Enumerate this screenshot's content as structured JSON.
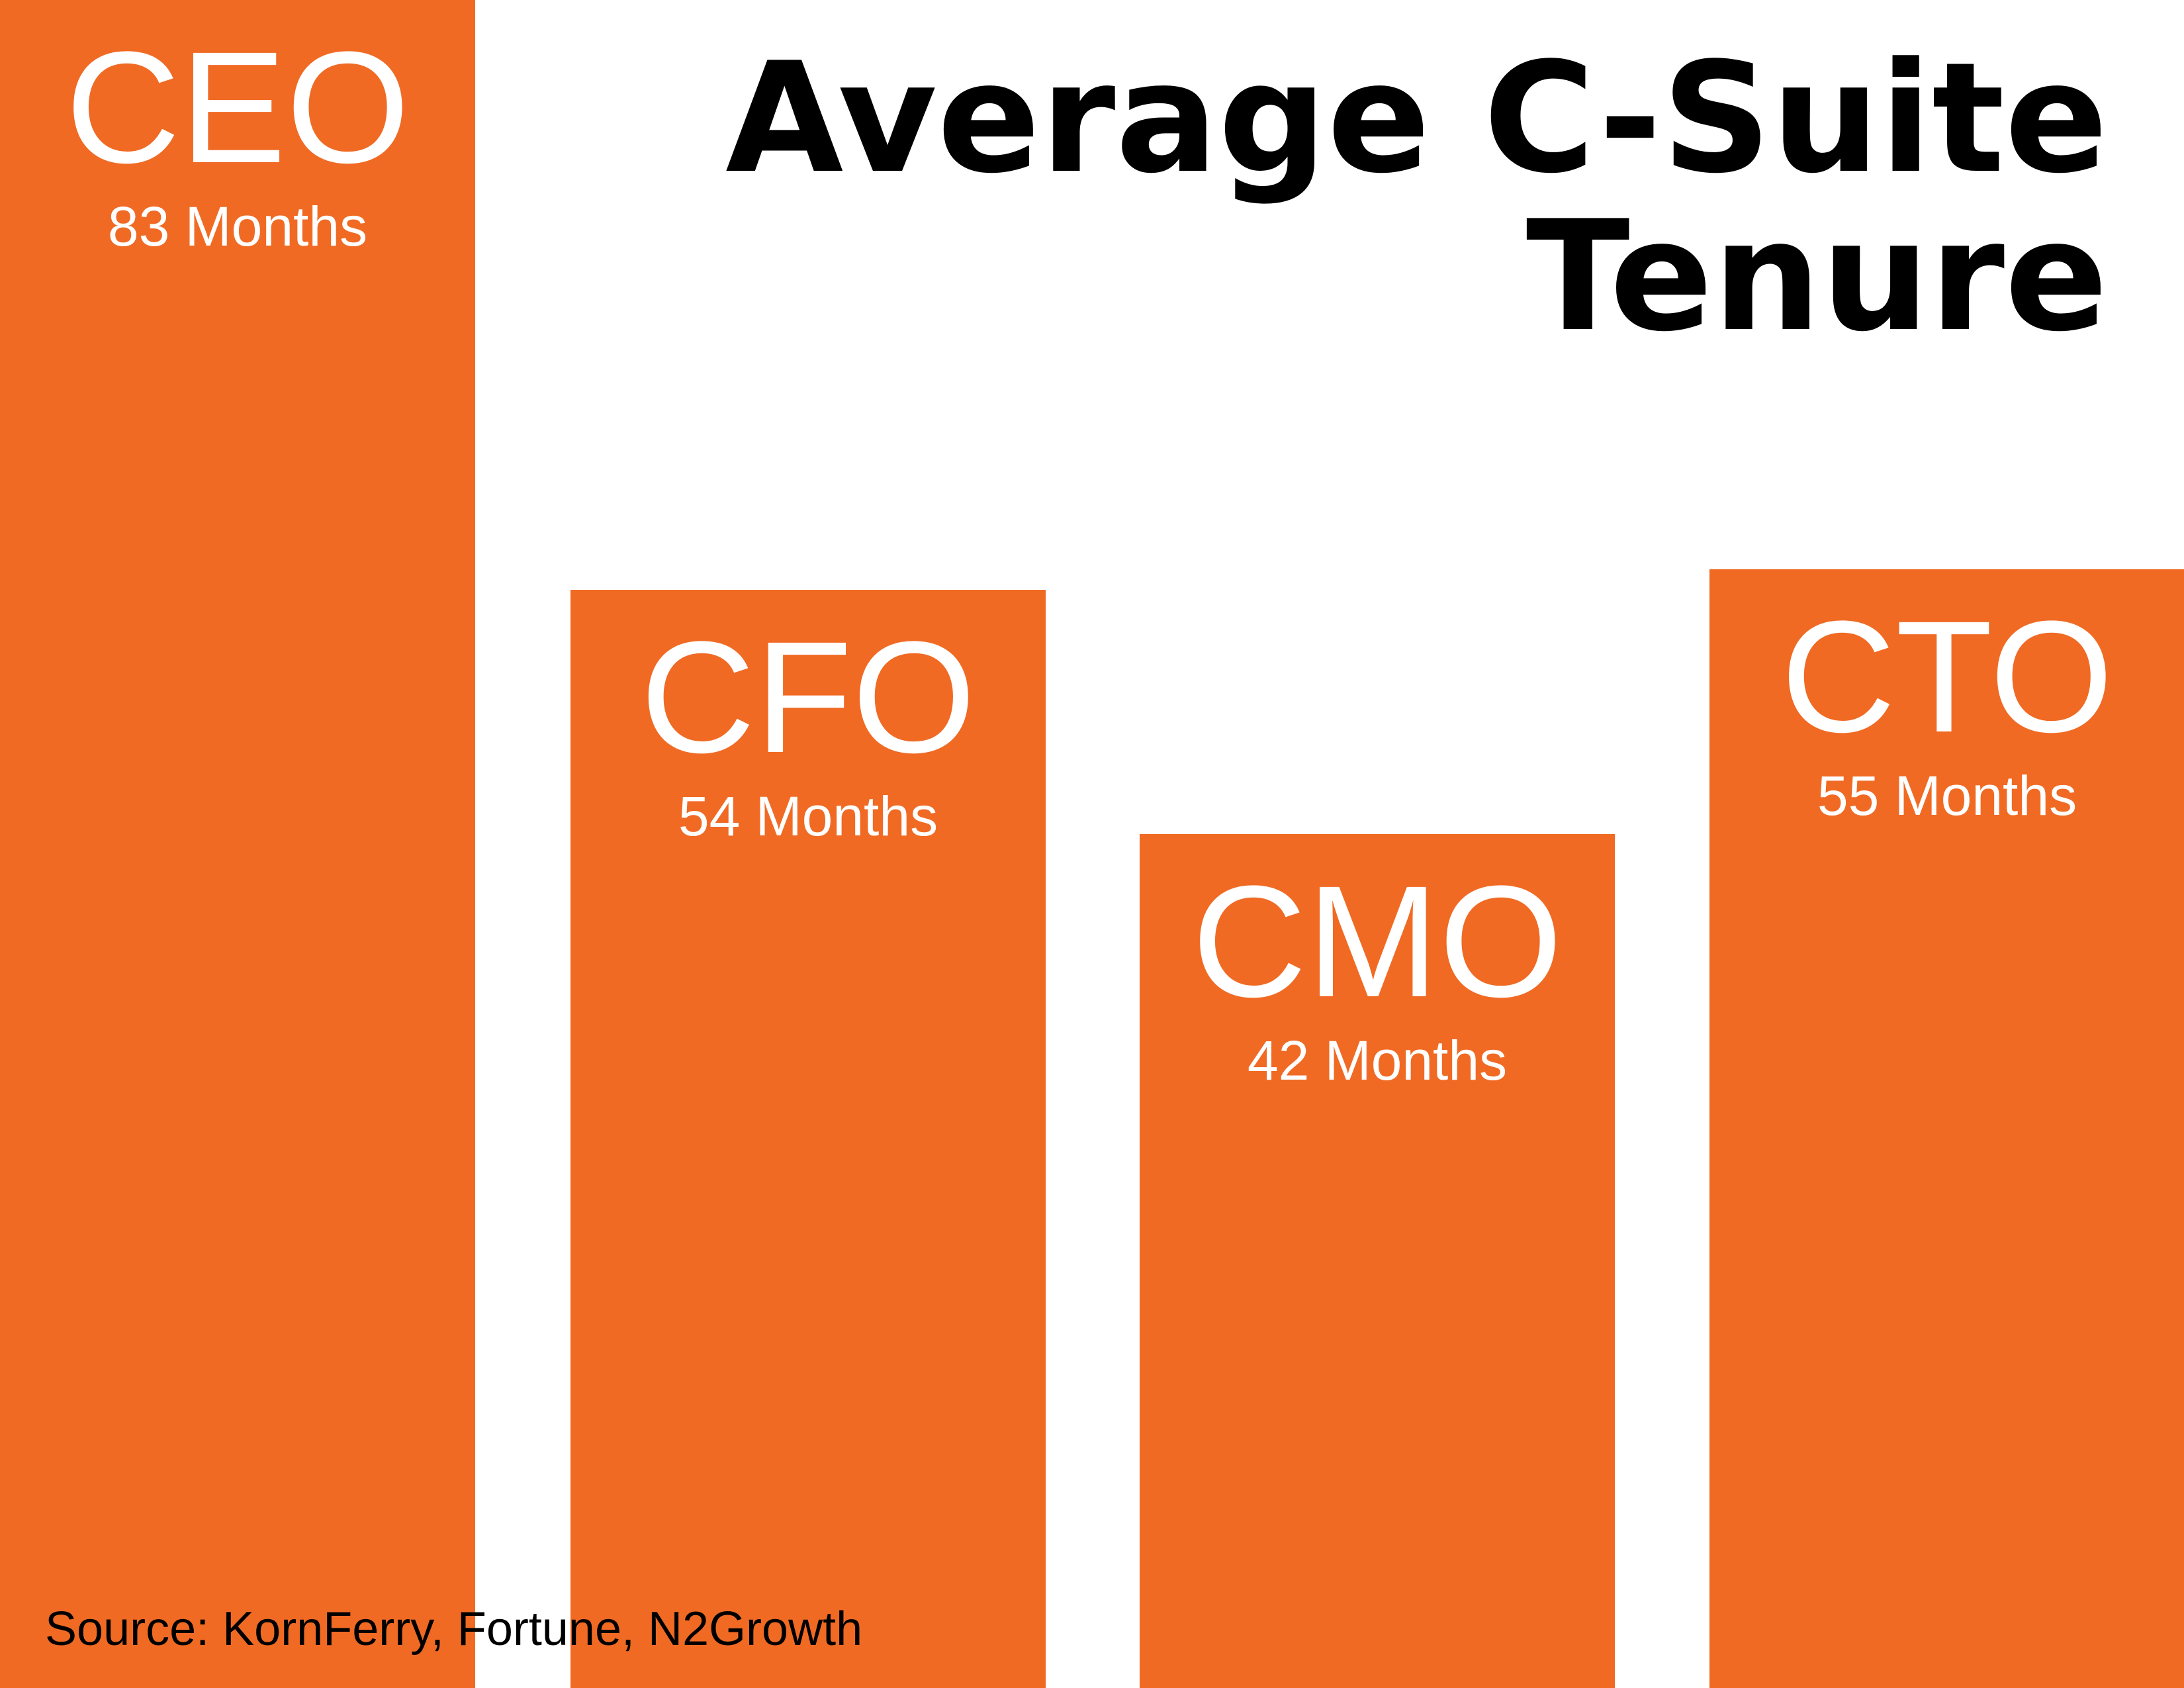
{
  "chart_data": {
    "type": "bar",
    "title_lines": [
      "Average C-Suite",
      "Tenure"
    ],
    "categories": [
      "CEO",
      "CFO",
      "CMO",
      "CTO"
    ],
    "values": [
      83,
      54,
      42,
      55
    ],
    "value_labels": [
      "83 Months",
      "54 Months",
      "42 Months",
      "55 Months"
    ],
    "unit": "Months",
    "xlabel": "",
    "ylabel": "",
    "ylim": [
      0,
      83
    ],
    "grid": false,
    "bar_color": "#f06a24",
    "text_color_on_bars": "#ffffff"
  },
  "footer": {
    "source": "Source: KornFerry, Fortune, N2Growth"
  }
}
